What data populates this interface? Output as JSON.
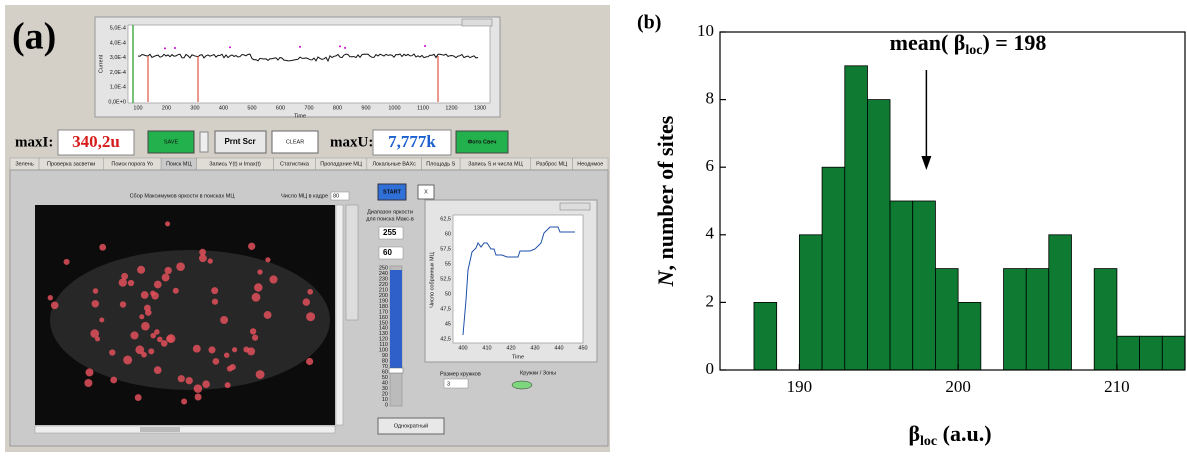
{
  "panel_a": {
    "label": "(a)",
    "top_plot": {
      "y_axis_label": "Current",
      "x_axis_label": "Time",
      "yticks": [
        "5,0E-4",
        "4,0E-4",
        "3,0E-4",
        "2,0E-4",
        "1,0E-4",
        "0,0E+0"
      ],
      "xticks": [
        "100",
        "200",
        "300",
        "400",
        "500",
        "600",
        "700",
        "800",
        "900",
        "1000",
        "1100",
        "1200",
        "1300"
      ]
    },
    "controls": {
      "max_i_label": "maxI:",
      "max_i_value": "340,2u",
      "save": "SAVE",
      "print_screen": "Prnt Scr",
      "clear": "CLEAR",
      "max_u_label": "maxU:",
      "max_u_value": "7,777k",
      "photo": "Фото Свеч"
    },
    "tabs": [
      "Зелень",
      "Проверка засветки",
      "Поиск порога Yo",
      "Поиск МЦ",
      "Запись Y(t) и Imax(t)",
      "Статистика",
      "Пропадание МЦ",
      "Локальные ВАХс",
      "Площадь S",
      "Запись S и числа МЦ",
      "Разброс МЦ",
      "Неоднмое"
    ],
    "tab_body": {
      "title": "Сбор Максимумов яркости в поисках МЦ",
      "count_label": "Число МЦ в кадре",
      "count_value": "80",
      "start": "START",
      "close": "X",
      "range_label": [
        "Диапазон яркости",
        "для поиска Макс-в"
      ],
      "range_high": "255",
      "range_low": "60",
      "slider_ticks": [
        "250",
        "240",
        "230",
        "220",
        "210",
        "200",
        "190",
        "180",
        "170",
        "160",
        "150",
        "140",
        "130",
        "120",
        "110",
        "100",
        "90",
        "80",
        "70",
        "60",
        "50",
        "40",
        "30",
        "20",
        "10",
        "0"
      ],
      "inner_plot": {
        "y_axis_label": "Число собранных МЦ",
        "x_axis_label": "Time",
        "yticks": [
          "62,5",
          "60",
          "57,5",
          "55",
          "52,5",
          "50",
          "47,5",
          "45",
          "42,5"
        ],
        "xticks": [
          "400",
          "410",
          "420",
          "430",
          "440",
          "450"
        ]
      },
      "circle_size_label": "Размер кружков",
      "circle_size_value": "3",
      "circles_zones_label": "Кружки / Зоны",
      "single": "Однократный"
    }
  },
  "chart_data": {
    "type": "histogram",
    "panel_label": "(b)",
    "annotation": {
      "text_before": "mean( β",
      "sub": "loc",
      "text_after": ") = 198",
      "x": 198
    },
    "x_label": {
      "symbol": "β",
      "sub": "loc",
      "unit": " (a.u.)"
    },
    "y_label": {
      "italic": "N",
      "text": ", number of sites"
    },
    "bins": [
      187.14,
      188.57,
      190,
      191.43,
      192.86,
      194.29,
      195.71,
      197.14,
      198.57,
      200,
      201.43,
      202.86,
      204.29,
      205.71,
      207.14,
      208.57,
      210,
      211.43,
      212.86,
      214.29
    ],
    "values": [
      2,
      0,
      4,
      6,
      9,
      8,
      5,
      5,
      3,
      2,
      0,
      3,
      3,
      4,
      0,
      3,
      1,
      1,
      1
    ],
    "color": "#0e7a32",
    "xlim": [
      185,
      214.29
    ],
    "ylim": [
      0,
      10
    ],
    "xticks": [
      190,
      200,
      210
    ],
    "yticks": [
      0,
      2,
      4,
      6,
      8,
      10
    ]
  }
}
